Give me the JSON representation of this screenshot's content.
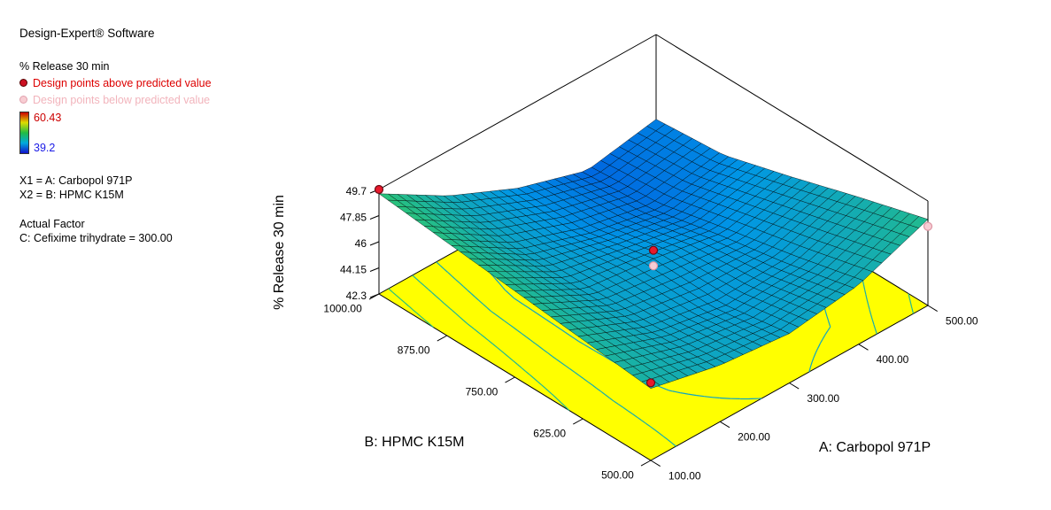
{
  "app": {
    "title": "Design-Expert® Software"
  },
  "legend": {
    "response_label": "% Release 30 min",
    "points_above_label": "Design points above predicted value",
    "points_below_label": "Design points below predicted value",
    "scale_max": "60.43",
    "scale_min": "39.2",
    "x1_label": "X1 = A: Carbopol 971P",
    "x2_label": "X2 = B: HPMC K15M",
    "actual_factor_title": "Actual Factor",
    "actual_factor_value": "C: Cefixime trihydrate = 300.00",
    "colors": {
      "above_text": "#dd0000",
      "below_text": "#f2b4bc",
      "scale_max_text": "#cc0000",
      "scale_min_text": "#1a1ae6"
    }
  },
  "chart_data": {
    "type": "surface3d",
    "zlabel": "% Release 30 min",
    "xlabel": "A: Carbopol 971P",
    "ylabel": "B: HPMC K15M",
    "x_range": [
      100,
      500
    ],
    "y_range": [
      500,
      1000
    ],
    "z_axis_range": [
      42.3,
      49.7
    ],
    "color_scale_range": [
      39.2,
      60.43
    ],
    "x_ticks": [
      "100.00",
      "200.00",
      "300.00",
      "400.00",
      "500.00"
    ],
    "y_ticks": [
      "500.00",
      "625.00",
      "750.00",
      "875.00",
      "1000.00"
    ],
    "z_ticks": [
      "42.3",
      "44.15",
      "46",
      "47.85",
      "49.7"
    ],
    "z_grid": {
      "x": [
        100,
        200,
        300,
        400,
        500
      ],
      "y": [
        500,
        625,
        750,
        875,
        1000
      ],
      "z": [
        [
          47.4,
          46.3,
          45.8,
          46.5,
          48.4
        ],
        [
          47.9,
          45.9,
          45.0,
          45.3,
          47.0
        ],
        [
          48.4,
          45.8,
          45.2,
          44.3,
          45.5
        ],
        [
          48.9,
          45.9,
          44.2,
          43.2,
          44.1
        ],
        [
          49.4,
          46.5,
          44.3,
          42.8,
          43.7
        ]
      ]
    },
    "design_points": [
      {
        "x": 100,
        "y": 1000,
        "z": 49.7,
        "type": "above"
      },
      {
        "x": 100,
        "y": 500,
        "z": 47.8,
        "type": "above"
      },
      {
        "x": 300,
        "y": 750,
        "z": 45.8,
        "type": "above"
      },
      {
        "x": 300,
        "y": 750,
        "z": 44.7,
        "type": "below"
      },
      {
        "x": 500,
        "y": 500,
        "z": 47.9,
        "type": "below"
      }
    ],
    "contour_levels": [
      44,
      45,
      46,
      47,
      48,
      49
    ],
    "floor_color": "#ffff00",
    "grid_on": true,
    "legend_position": "left"
  }
}
